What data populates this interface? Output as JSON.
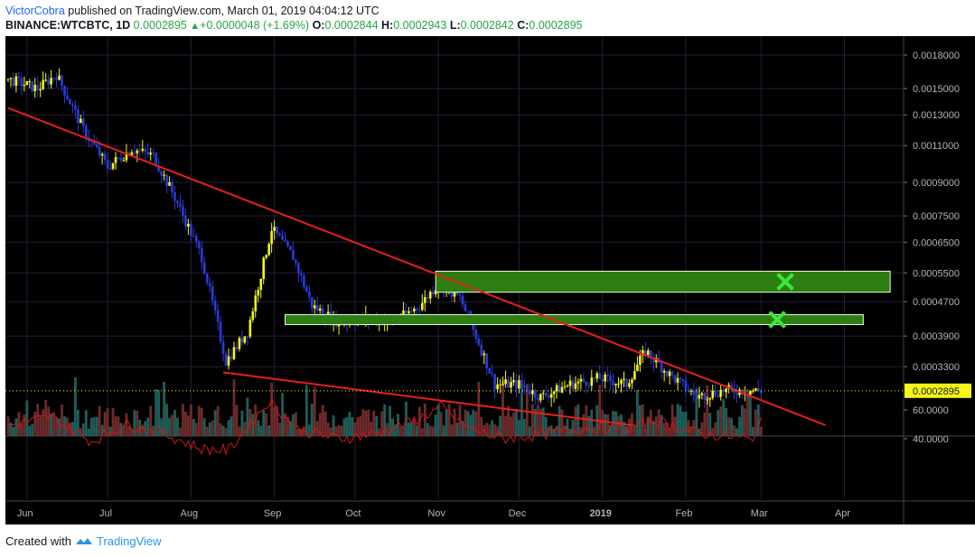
{
  "header": {
    "author": "VictorCobra",
    "published_text": "published on TradingView.com, March 01, 2019 04:04:12 UTC",
    "symbol": "BINANCE:WTCBTC, 1D",
    "last": "0.0002895",
    "change": "+0.0000048 (+1.69%)",
    "o_label": "O:",
    "o": "0.0002844",
    "h_label": "H:",
    "h": "0.0002943",
    "l_label": "L:",
    "l": "0.0002842",
    "c_label": "C:",
    "c": "0.0002895"
  },
  "footer": {
    "created_with": "Created with",
    "brand": "TradingView"
  },
  "colors": {
    "background": "#000000",
    "grid": "#2a1a3a",
    "bull_candle": "#f5f518",
    "bear_candle": "#2b3bd8",
    "trendline": "#e8201c",
    "zone": "#2e7d12",
    "zone_border": "#e8ffe0",
    "rsi_line": "#d01818",
    "target_marker": "#38e838"
  },
  "chart_data": {
    "type": "candlestick",
    "symbol": "BINANCE:WTCBTC",
    "interval": "1D",
    "price_scale": "log",
    "ylim": [
      0.00024,
      0.0019
    ],
    "y_ticks": [
      "0.0018000",
      "0.0015000",
      "0.0013000",
      "0.0011000",
      "0.0009000",
      "0.0007500",
      "0.0006500",
      "0.0005500",
      "0.0004700",
      "0.0003900",
      "0.0003300"
    ],
    "x_ticks": [
      "Jun",
      "Jul",
      "Aug",
      "Sep",
      "Oct",
      "Nov",
      "Dec",
      "2019",
      "Jan",
      "Feb",
      "Mar",
      "Apr"
    ],
    "current_price_label": "0.0002895",
    "close_series": [
      {
        "date": "2018-05-25",
        "close": 0.00158
      },
      {
        "date": "2018-06-05",
        "close": 0.0015
      },
      {
        "date": "2018-06-12",
        "close": 0.00162
      },
      {
        "date": "2018-06-22",
        "close": 0.0012
      },
      {
        "date": "2018-07-01",
        "close": 0.00098
      },
      {
        "date": "2018-07-10",
        "close": 0.00108
      },
      {
        "date": "2018-07-18",
        "close": 0.00104
      },
      {
        "date": "2018-07-26",
        "close": 0.00083
      },
      {
        "date": "2018-08-05",
        "close": 0.0006
      },
      {
        "date": "2018-08-14",
        "close": 0.00034
      },
      {
        "date": "2018-08-22",
        "close": 0.0004
      },
      {
        "date": "2018-08-31",
        "close": 0.0007
      },
      {
        "date": "2018-09-08",
        "close": 0.0006
      },
      {
        "date": "2018-09-15",
        "close": 0.00046
      },
      {
        "date": "2018-09-25",
        "close": 0.00042
      },
      {
        "date": "2018-10-05",
        "close": 0.00043
      },
      {
        "date": "2018-10-15",
        "close": 0.00042
      },
      {
        "date": "2018-10-25",
        "close": 0.00046
      },
      {
        "date": "2018-11-01",
        "close": 0.00052
      },
      {
        "date": "2018-11-09",
        "close": 0.00048
      },
      {
        "date": "2018-11-15",
        "close": 0.00039
      },
      {
        "date": "2018-11-22",
        "close": 0.0003
      },
      {
        "date": "2018-12-01",
        "close": 0.0003
      },
      {
        "date": "2018-12-09",
        "close": 0.00028
      },
      {
        "date": "2018-12-20",
        "close": 0.0003
      },
      {
        "date": "2018-12-31",
        "close": 0.00031
      },
      {
        "date": "2019-01-10",
        "close": 0.0003
      },
      {
        "date": "2019-01-17",
        "close": 0.00036
      },
      {
        "date": "2019-01-25",
        "close": 0.00032
      },
      {
        "date": "2019-02-05",
        "close": 0.00028
      },
      {
        "date": "2019-02-15",
        "close": 0.00029
      },
      {
        "date": "2019-02-22",
        "close": 0.00029
      },
      {
        "date": "2019-03-01",
        "close": 0.0002895
      }
    ],
    "trendlines": [
      {
        "from": {
          "date": "2018-05-25",
          "price": 0.00135
        },
        "to": {
          "date": "2019-03-25",
          "price": 0.00024
        }
      },
      {
        "from": {
          "date": "2018-08-13",
          "price": 0.00032
        },
        "to": {
          "date": "2019-01-12",
          "price": 0.00024
        }
      }
    ],
    "zones": [
      {
        "from_date": "2018-10-31",
        "to_date": "2019-04-18",
        "low": 0.000495,
        "high": 0.000555,
        "target_date": "2019-03-10"
      },
      {
        "from_date": "2018-09-05",
        "to_date": "2019-04-08",
        "low": 0.000415,
        "high": 0.000438,
        "target_date": "2019-03-07"
      }
    ],
    "rsi": {
      "y_ticks": [
        "60.0000",
        "40.0000"
      ],
      "values": [
        {
          "date": "2018-05-25",
          "value": 49
        },
        {
          "date": "2018-06-10",
          "value": 55
        },
        {
          "date": "2018-06-25",
          "value": 38
        },
        {
          "date": "2018-07-08",
          "value": 50
        },
        {
          "date": "2018-07-20",
          "value": 45
        },
        {
          "date": "2018-08-05",
          "value": 33
        },
        {
          "date": "2018-08-15",
          "value": 32
        },
        {
          "date": "2018-08-30",
          "value": 66
        },
        {
          "date": "2018-09-10",
          "value": 46
        },
        {
          "date": "2018-09-25",
          "value": 40
        },
        {
          "date": "2018-10-10",
          "value": 44
        },
        {
          "date": "2018-10-25",
          "value": 54
        },
        {
          "date": "2018-11-02",
          "value": 62
        },
        {
          "date": "2018-11-12",
          "value": 47
        },
        {
          "date": "2018-11-25",
          "value": 40
        },
        {
          "date": "2018-12-10",
          "value": 43
        },
        {
          "date": "2018-12-28",
          "value": 48
        },
        {
          "date": "2019-01-10",
          "value": 46
        },
        {
          "date": "2019-01-20",
          "value": 53
        },
        {
          "date": "2019-02-05",
          "value": 44
        },
        {
          "date": "2019-02-20",
          "value": 41
        },
        {
          "date": "2019-02-25",
          "value": 39
        },
        {
          "date": "2019-03-01",
          "value": 51
        }
      ]
    }
  }
}
